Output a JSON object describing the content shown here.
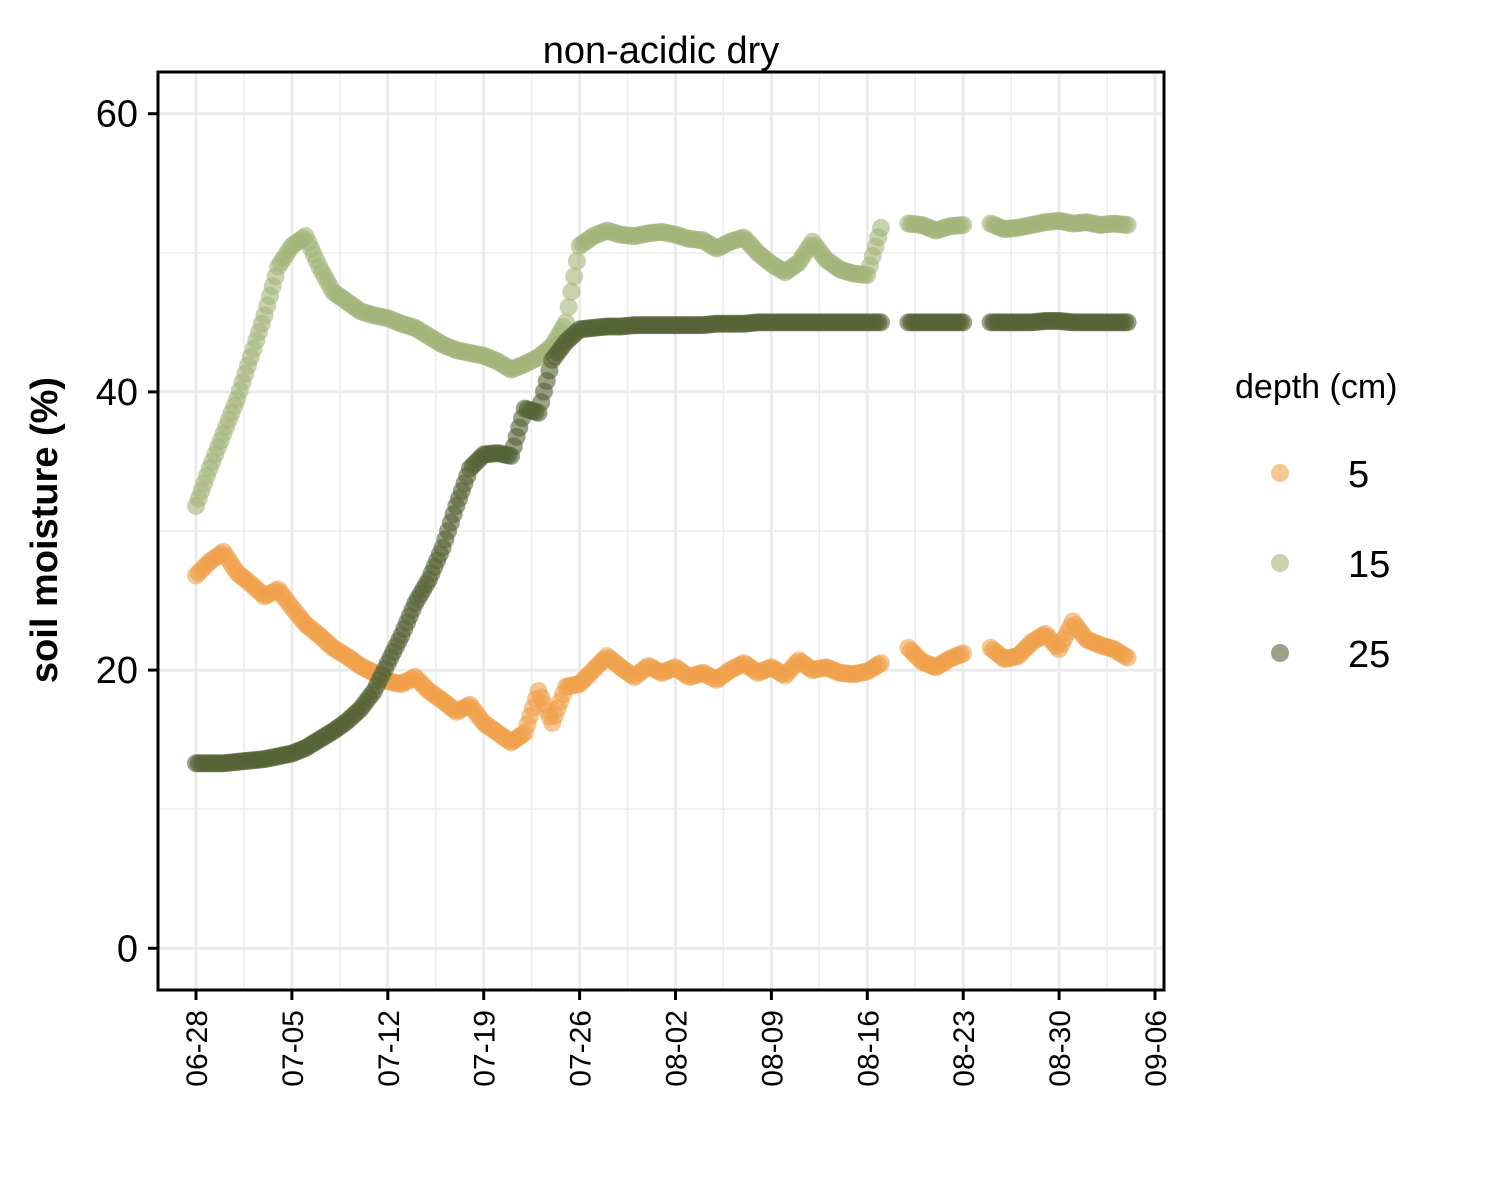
{
  "chart_data": {
    "type": "scatter",
    "title": "non-acidic dry",
    "xlabel": "",
    "ylabel": "soil moisture (%)",
    "x_type": "date",
    "xlim": [
      "06-28",
      "09-06"
    ],
    "ylim": [
      -3,
      63
    ],
    "x_ticks": [
      "06-28",
      "07-05",
      "07-12",
      "07-19",
      "07-26",
      "08-02",
      "08-09",
      "08-16",
      "08-23",
      "08-30",
      "09-06"
    ],
    "y_ticks": [
      0,
      20,
      40,
      60
    ],
    "grid": true,
    "legend": {
      "title": "depth (cm)",
      "position": "right"
    },
    "series": [
      {
        "name": "5",
        "color": "#F0A04B",
        "points": [
          [
            "06-28",
            26.8
          ],
          [
            "06-29",
            27.8
          ],
          [
            "06-30",
            28.5
          ],
          [
            "07-01",
            27.0
          ],
          [
            "07-02",
            26.2
          ],
          [
            "07-03",
            25.3
          ],
          [
            "07-04",
            25.8
          ],
          [
            "07-05",
            24.5
          ],
          [
            "07-06",
            23.3
          ],
          [
            "07-07",
            22.5
          ],
          [
            "07-08",
            21.6
          ],
          [
            "07-09",
            21.0
          ],
          [
            "07-10",
            20.3
          ],
          [
            "07-11",
            19.8
          ],
          [
            "07-12",
            19.2
          ],
          [
            "07-13",
            19.0
          ],
          [
            "07-14",
            19.5
          ],
          [
            "07-15",
            18.5
          ],
          [
            "07-16",
            17.8
          ],
          [
            "07-17",
            17.0
          ],
          [
            "07-18",
            17.5
          ],
          [
            "07-19",
            16.2
          ],
          [
            "07-20",
            15.5
          ],
          [
            "07-21",
            14.8
          ],
          [
            "07-22",
            15.5
          ],
          [
            "07-23",
            18.5
          ],
          [
            "07-24",
            16.2
          ],
          [
            "07-25",
            18.8
          ],
          [
            "07-26",
            19.0
          ],
          [
            "07-27",
            20.0
          ],
          [
            "07-28",
            21.0
          ],
          [
            "07-29",
            20.2
          ],
          [
            "07-30",
            19.5
          ],
          [
            "07-31",
            20.3
          ],
          [
            "08-01",
            19.8
          ],
          [
            "08-02",
            20.2
          ],
          [
            "08-03",
            19.5
          ],
          [
            "08-04",
            19.8
          ],
          [
            "08-05",
            19.3
          ],
          [
            "08-06",
            20.0
          ],
          [
            "08-07",
            20.5
          ],
          [
            "08-08",
            19.8
          ],
          [
            "08-09",
            20.2
          ],
          [
            "08-10",
            19.6
          ],
          [
            "08-11",
            20.7
          ],
          [
            "08-12",
            20.0
          ],
          [
            "08-13",
            20.2
          ],
          [
            "08-14",
            19.8
          ],
          [
            "08-15",
            19.7
          ],
          [
            "08-16",
            19.9
          ],
          [
            "08-17",
            20.5
          ],
          [
            "08-19",
            21.6
          ],
          [
            "08-20",
            20.6
          ],
          [
            "08-21",
            20.2
          ],
          [
            "08-22",
            20.8
          ],
          [
            "08-23",
            21.2
          ],
          [
            "08-25",
            21.6
          ],
          [
            "08-26",
            20.8
          ],
          [
            "08-27",
            21.0
          ],
          [
            "08-28",
            22.0
          ],
          [
            "08-29",
            22.6
          ],
          [
            "08-30",
            21.5
          ],
          [
            "08-31",
            23.5
          ],
          [
            "09-01",
            22.2
          ],
          [
            "09-02",
            21.8
          ],
          [
            "09-03",
            21.5
          ],
          [
            "09-04",
            20.9
          ]
        ]
      },
      {
        "name": "15",
        "color": "#A3B47A",
        "points": [
          [
            "06-28",
            31.8
          ],
          [
            "06-29",
            34.5
          ],
          [
            "06-30",
            37.0
          ],
          [
            "07-01",
            39.5
          ],
          [
            "07-02",
            42.5
          ],
          [
            "07-03",
            45.5
          ],
          [
            "07-04",
            49.0
          ],
          [
            "07-05",
            50.5
          ],
          [
            "07-06",
            51.2
          ],
          [
            "07-07",
            49.0
          ],
          [
            "07-08",
            47.2
          ],
          [
            "07-09",
            46.5
          ],
          [
            "07-10",
            45.8
          ],
          [
            "07-11",
            45.5
          ],
          [
            "07-12",
            45.3
          ],
          [
            "07-13",
            44.9
          ],
          [
            "07-14",
            44.6
          ],
          [
            "07-15",
            44.0
          ],
          [
            "07-16",
            43.4
          ],
          [
            "07-17",
            43.0
          ],
          [
            "07-18",
            42.8
          ],
          [
            "07-19",
            42.6
          ],
          [
            "07-20",
            42.2
          ],
          [
            "07-21",
            41.6
          ],
          [
            "07-22",
            42.0
          ],
          [
            "07-23",
            42.5
          ],
          [
            "07-24",
            43.3
          ],
          [
            "07-25",
            45.0
          ],
          [
            "07-26",
            50.5
          ],
          [
            "07-27",
            51.2
          ],
          [
            "07-28",
            51.6
          ],
          [
            "07-29",
            51.3
          ],
          [
            "07-30",
            51.2
          ],
          [
            "07-31",
            51.4
          ],
          [
            "08-01",
            51.5
          ],
          [
            "08-02",
            51.3
          ],
          [
            "08-03",
            51.0
          ],
          [
            "08-04",
            50.9
          ],
          [
            "08-05",
            50.3
          ],
          [
            "08-06",
            50.8
          ],
          [
            "08-07",
            51.1
          ],
          [
            "08-08",
            50.0
          ],
          [
            "08-09",
            49.2
          ],
          [
            "08-10",
            48.6
          ],
          [
            "08-11",
            49.3
          ],
          [
            "08-12",
            50.8
          ],
          [
            "08-13",
            49.5
          ],
          [
            "08-14",
            48.8
          ],
          [
            "08-15",
            48.5
          ],
          [
            "08-16",
            48.4
          ],
          [
            "08-17",
            51.8
          ],
          [
            "08-19",
            52.1
          ],
          [
            "08-20",
            52.0
          ],
          [
            "08-21",
            51.6
          ],
          [
            "08-22",
            51.9
          ],
          [
            "08-23",
            52.0
          ],
          [
            "08-25",
            52.1
          ],
          [
            "08-26",
            51.7
          ],
          [
            "08-27",
            51.8
          ],
          [
            "08-28",
            52.0
          ],
          [
            "08-29",
            52.2
          ],
          [
            "08-30",
            52.3
          ],
          [
            "08-31",
            52.1
          ],
          [
            "09-01",
            52.2
          ],
          [
            "09-02",
            52.0
          ],
          [
            "09-03",
            52.1
          ],
          [
            "09-04",
            52.0
          ]
        ]
      },
      {
        "name": "25",
        "color": "#556235",
        "points": [
          [
            "06-28",
            13.3
          ],
          [
            "06-29",
            13.3
          ],
          [
            "06-30",
            13.3
          ],
          [
            "07-01",
            13.4
          ],
          [
            "07-02",
            13.5
          ],
          [
            "07-03",
            13.6
          ],
          [
            "07-04",
            13.8
          ],
          [
            "07-05",
            14.0
          ],
          [
            "07-06",
            14.4
          ],
          [
            "07-07",
            15.0
          ],
          [
            "07-08",
            15.6
          ],
          [
            "07-09",
            16.3
          ],
          [
            "07-10",
            17.2
          ],
          [
            "07-11",
            18.5
          ],
          [
            "07-12",
            20.5
          ],
          [
            "07-13",
            22.5
          ],
          [
            "07-14",
            24.8
          ],
          [
            "07-15",
            26.5
          ],
          [
            "07-16",
            28.8
          ],
          [
            "07-17",
            31.8
          ],
          [
            "07-18",
            34.5
          ],
          [
            "07-19",
            35.5
          ],
          [
            "07-20",
            35.6
          ],
          [
            "07-21",
            35.4
          ],
          [
            "07-22",
            38.8
          ],
          [
            "07-23",
            38.5
          ],
          [
            "07-24",
            42.3
          ],
          [
            "07-25",
            43.6
          ],
          [
            "07-26",
            44.5
          ],
          [
            "07-27",
            44.6
          ],
          [
            "07-28",
            44.7
          ],
          [
            "07-29",
            44.7
          ],
          [
            "07-30",
            44.8
          ],
          [
            "07-31",
            44.8
          ],
          [
            "08-01",
            44.8
          ],
          [
            "08-02",
            44.8
          ],
          [
            "08-03",
            44.8
          ],
          [
            "08-04",
            44.8
          ],
          [
            "08-05",
            44.9
          ],
          [
            "08-06",
            44.9
          ],
          [
            "08-07",
            44.9
          ],
          [
            "08-08",
            45.0
          ],
          [
            "08-09",
            45.0
          ],
          [
            "08-10",
            45.0
          ],
          [
            "08-11",
            45.0
          ],
          [
            "08-12",
            45.0
          ],
          [
            "08-13",
            45.0
          ],
          [
            "08-14",
            45.0
          ],
          [
            "08-15",
            45.0
          ],
          [
            "08-16",
            45.0
          ],
          [
            "08-17",
            45.0
          ],
          [
            "08-19",
            45.0
          ],
          [
            "08-20",
            45.0
          ],
          [
            "08-21",
            45.0
          ],
          [
            "08-22",
            45.0
          ],
          [
            "08-23",
            45.0
          ],
          [
            "08-25",
            45.0
          ],
          [
            "08-26",
            45.0
          ],
          [
            "08-27",
            45.0
          ],
          [
            "08-28",
            45.0
          ],
          [
            "08-29",
            45.1
          ],
          [
            "08-30",
            45.1
          ],
          [
            "08-31",
            45.0
          ],
          [
            "09-01",
            45.0
          ],
          [
            "09-02",
            45.0
          ],
          [
            "09-03",
            45.0
          ],
          [
            "09-04",
            45.0
          ]
        ]
      }
    ]
  }
}
